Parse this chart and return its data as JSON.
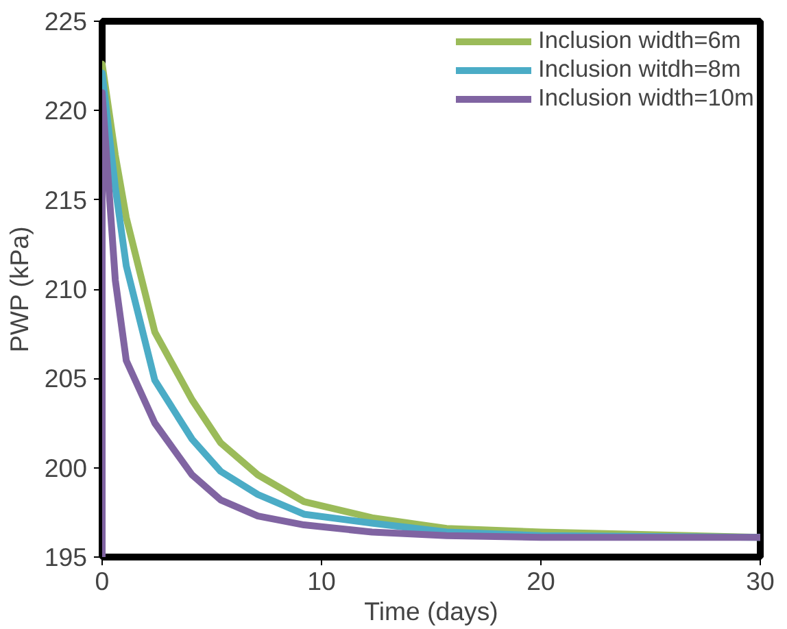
{
  "chart_data": {
    "type": "line",
    "xlabel": "Time (days)",
    "ylabel": "PWP (kPa)",
    "xlim": [
      0,
      30
    ],
    "ylim": [
      195,
      225
    ],
    "xticks": [
      0,
      10,
      20,
      30
    ],
    "yticks": [
      195,
      200,
      205,
      210,
      215,
      220,
      225
    ],
    "grid": false,
    "legend": "top right",
    "marker": "none",
    "line_style": "solid",
    "series": [
      {
        "name": "Inclusion width=6m",
        "color": "#9bbb59",
        "x": [
          0,
          0.6,
          1.1,
          2.4,
          4.1,
          5.4,
          7.1,
          9.2,
          12.3,
          15.7,
          20,
          30
        ],
        "values": [
          222.6,
          217.5,
          214.0,
          207.6,
          203.8,
          201.4,
          199.6,
          198.1,
          197.2,
          196.6,
          196.4,
          196.1
        ]
      },
      {
        "name": "Inclusion witdh=8m",
        "color": "#4bacc6",
        "x": [
          0,
          0.6,
          1.1,
          2.4,
          4.1,
          5.4,
          7.1,
          9.2,
          12.3,
          15.7,
          20,
          30
        ],
        "values": [
          222.1,
          215.7,
          211.3,
          204.9,
          201.6,
          199.8,
          198.5,
          197.4,
          196.9,
          196.4,
          196.2,
          196.1
        ]
      },
      {
        "name": "Inclusion width=10m",
        "color": "#8064a2",
        "x": [
          0,
          0,
          0.6,
          1.1,
          2.4,
          4.1,
          5.4,
          7.1,
          9.2,
          12.3,
          15.7,
          20,
          30
        ],
        "values": [
          195,
          221.0,
          210.5,
          206.0,
          202.5,
          199.6,
          198.2,
          197.3,
          196.8,
          196.4,
          196.2,
          196.1,
          196.1
        ]
      }
    ]
  }
}
